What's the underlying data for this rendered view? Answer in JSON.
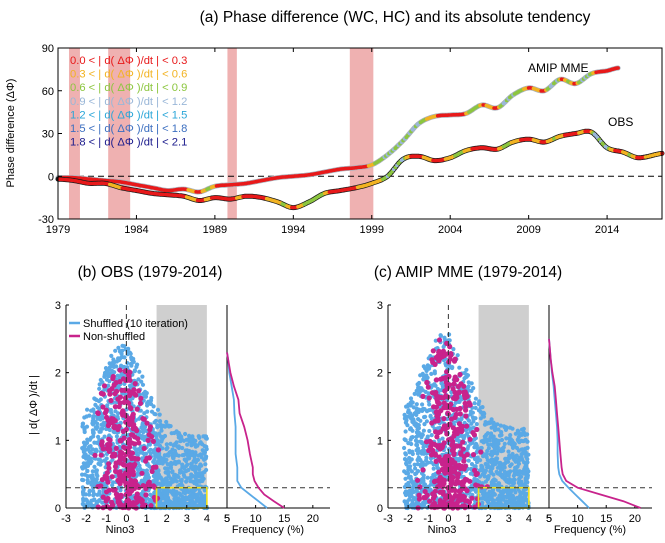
{
  "chart_data": [
    {
      "type": "line",
      "title": "(a) Phase difference (WC, HC) and its absolute tendency",
      "ylabel": "Phase difference (ΔΦ)",
      "xlabel": "",
      "xlim": [
        1979,
        2017.5
      ],
      "ylim": [
        -30,
        90
      ],
      "x_ticks": [
        "1979",
        "1984",
        "1989",
        "1994",
        "1999",
        "2004",
        "2009",
        "2014"
      ],
      "y_ticks": [
        "-30",
        "0",
        "30",
        "60",
        "90"
      ],
      "legend_entries": [
        {
          "label": "0.0 < | d( ΔΦ )/dt | < 0.3",
          "color": "#e8191a"
        },
        {
          "label": "0.3 < | d( ΔΦ )/dt | < 0.6",
          "color": "#f2b322"
        },
        {
          "label": "0.6 < | d( ΔΦ )/dt | < 0.9",
          "color": "#8cc63f"
        },
        {
          "label": "0.9 < | d( ΔΦ )/dt | < 1.2",
          "color": "#9ab7d8"
        },
        {
          "label": "1.2 < | d( ΔΦ )/dt | < 1.5",
          "color": "#2aa6d8"
        },
        {
          "label": "1.5 < | d( ΔΦ )/dt | < 1.8",
          "color": "#3c6fc0"
        },
        {
          "label": "1.8 < | d( ΔΦ )/dt | < 2.1",
          "color": "#1a1a8c"
        }
      ],
      "shaded_periods": [
        [
          1979.7,
          1980.4
        ],
        [
          1982.2,
          1983.6
        ],
        [
          1989.8,
          1990.4
        ],
        [
          1997.6,
          1999.1
        ]
      ],
      "shade_color": "#efb1b1",
      "series": [
        {
          "name": "AMIP MME",
          "color": "#aab2bd",
          "x": [
            1979,
            1980,
            1981,
            1982,
            1983,
            1984,
            1985,
            1986,
            1987,
            1988,
            1989,
            1990,
            1991,
            1992,
            1993,
            1994,
            1995,
            1996,
            1997,
            1998,
            1999,
            2000,
            2001,
            2002,
            2003,
            2004,
            2005,
            2006,
            2007,
            2008,
            2009,
            2010,
            2011,
            2012,
            2013,
            2014,
            2014.7
          ],
          "y": [
            -1,
            -1,
            -2,
            -3,
            -4,
            -6,
            -8,
            -10,
            -9,
            -11,
            -7,
            -6,
            -5,
            -3,
            -1,
            0,
            1,
            3,
            5,
            6,
            8,
            15,
            25,
            37,
            42,
            43,
            44,
            50,
            48,
            57,
            62,
            60,
            68,
            65,
            72,
            74,
            76
          ]
        },
        {
          "name": "OBS",
          "color": "#1a1a1a",
          "x": [
            1979,
            1980,
            1981,
            1982,
            1983,
            1984,
            1985,
            1986,
            1987,
            1988,
            1989,
            1990,
            1991,
            1992,
            1993,
            1994,
            1995,
            1996,
            1997,
            1998,
            1999,
            2000,
            2001,
            2002,
            2003,
            2004,
            2005,
            2006,
            2007,
            2008,
            2009,
            2010,
            2011,
            2012,
            2013,
            2014,
            2015,
            2016,
            2017.5
          ],
          "y": [
            -2,
            -3,
            -5,
            -5,
            -8,
            -10,
            -12,
            -13,
            -14,
            -17,
            -15,
            -16,
            -14,
            -15,
            -18,
            -22,
            -18,
            -12,
            -10,
            -8,
            -5,
            0,
            12,
            14,
            11,
            13,
            18,
            20,
            19,
            24,
            26,
            24,
            28,
            30,
            31,
            20,
            17,
            13,
            16
          ]
        }
      ],
      "annotations": [
        {
          "text": "AMIP MME",
          "color": "#aab2bd"
        },
        {
          "text": "OBS",
          "color": "#000000"
        }
      ],
      "reference_line": {
        "y": 0,
        "style": "dashed"
      }
    },
    {
      "type": "scatter",
      "title": "(b) OBS (1979-2014)",
      "xlabel": "Nino3",
      "ylabel": "| d( ΔΦ )/dt |",
      "xlim": [
        -3,
        5
      ],
      "ylim": [
        0,
        3
      ],
      "x_ticks": [
        "-3",
        "-2",
        "-1",
        "0",
        "1",
        "2",
        "3",
        "4",
        "5"
      ],
      "y_ticks": [
        "0",
        "1",
        "2",
        "3"
      ],
      "shaded_region_x": [
        1.5,
        4
      ],
      "highlight_box": {
        "x": [
          1.5,
          4
        ],
        "y": [
          0,
          0.3
        ],
        "color": "#f2e21b"
      },
      "threshold_line_y": 0.3,
      "legend_entries": [
        {
          "label": "Shuffled (10 iteration)",
          "color": "#5aa9e6"
        },
        {
          "label": "Non-shuffled",
          "color": "#c8238c"
        }
      ],
      "series": [
        {
          "name": "Shuffled (10 iteration)",
          "color": "#5aa9e6",
          "x_range": [
            -2.2,
            4
          ],
          "y_range": [
            0,
            2.4
          ],
          "count": 1400
        },
        {
          "name": "Non-shuffled",
          "color": "#c8238c",
          "x_range": [
            -2,
            2.2
          ],
          "y_range": [
            0,
            2.2
          ],
          "count": 320
        }
      ],
      "histogram": {
        "xlabel": "Frequency (%)",
        "x_ticks": [
          "5",
          "10",
          "15",
          "20"
        ],
        "xlim": [
          5,
          23
        ],
        "y_bins": [
          0.0,
          0.1,
          0.2,
          0.3,
          0.4,
          0.5,
          0.6,
          0.8,
          1.0,
          1.2,
          1.4,
          1.6,
          1.8,
          2.0,
          2.2,
          2.3
        ],
        "shuffled": [
          12.0,
          10.5,
          9.0,
          7.5,
          6.8,
          6.8,
          6.8,
          6.5,
          6.5,
          6.5,
          6.3,
          6.2,
          5.8,
          5.4,
          5.2,
          5.0
        ],
        "non_shuffled": [
          15.0,
          13.2,
          11.5,
          10.5,
          9.8,
          9.5,
          9.5,
          9.0,
          8.6,
          8.0,
          7.2,
          7.0,
          6.2,
          5.6,
          5.2,
          5.0
        ]
      }
    },
    {
      "type": "scatter",
      "title": "(c) AMIP MME (1979-2014)",
      "xlabel": "Nino3",
      "ylabel": "",
      "xlim": [
        -3,
        5
      ],
      "ylim": [
        0,
        3
      ],
      "x_ticks": [
        "-3",
        "-2",
        "-1",
        "0",
        "1",
        "2",
        "3",
        "4",
        "5"
      ],
      "y_ticks": [
        "0",
        "1",
        "2",
        "3"
      ],
      "shaded_region_x": [
        1.5,
        4
      ],
      "highlight_box": {
        "x": [
          1.5,
          4
        ],
        "y": [
          0,
          0.3
        ],
        "color": "#f2e21b"
      },
      "threshold_line_y": 0.3,
      "series": [
        {
          "name": "Shuffled (10 iteration)",
          "color": "#5aa9e6",
          "x_range": [
            -2.2,
            4
          ],
          "y_range": [
            0,
            2.6
          ],
          "count": 1400
        },
        {
          "name": "Non-shuffled",
          "color": "#c8238c",
          "x_range": [
            -2,
            2.2
          ],
          "y_range": [
            0,
            2.5
          ],
          "count": 360
        }
      ],
      "histogram": {
        "xlabel": "Frequency (%)",
        "x_ticks": [
          "5",
          "10",
          "15",
          "20"
        ],
        "xlim": [
          5,
          23
        ],
        "y_bins": [
          0.0,
          0.1,
          0.2,
          0.3,
          0.4,
          0.5,
          0.6,
          0.8,
          1.0,
          1.2,
          1.4,
          1.6,
          1.8,
          2.0,
          2.2,
          2.4,
          2.5
        ],
        "shuffled": [
          12.0,
          10.8,
          9.6,
          8.4,
          7.3,
          6.8,
          6.6,
          6.5,
          6.5,
          6.4,
          6.2,
          6.0,
          5.8,
          5.5,
          5.3,
          5.1,
          5.0
        ],
        "non_shuffled": [
          21.0,
          18.0,
          14.0,
          10.0,
          8.0,
          7.4,
          7.2,
          7.0,
          6.8,
          6.6,
          6.4,
          6.2,
          6.0,
          5.6,
          5.3,
          5.1,
          5.0
        ]
      }
    }
  ]
}
